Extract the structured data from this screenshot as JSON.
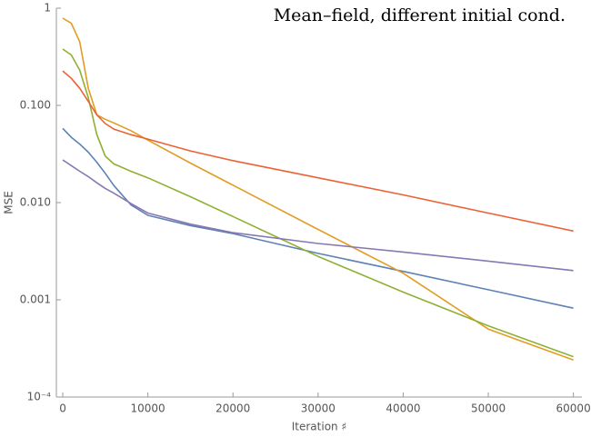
{
  "chart_data": {
    "type": "line",
    "title": "Mean–field, different initial cond.",
    "xlabel": "Iteration ♯",
    "ylabel": "MSE",
    "x": [
      0,
      1000,
      2000,
      3000,
      4000,
      5000,
      6000,
      8000,
      10000,
      15000,
      20000,
      30000,
      40000,
      50000,
      60000
    ],
    "series": [
      {
        "color": "#5e81b5",
        "values": [
          0.058,
          0.047,
          0.04,
          0.033,
          0.026,
          0.02,
          0.015,
          0.0095,
          0.0074,
          0.0058,
          0.0048,
          0.003,
          0.00196,
          0.00127,
          0.00082
        ]
      },
      {
        "color": "#e19c24",
        "values": [
          0.79,
          0.7,
          0.45,
          0.15,
          0.08,
          0.072,
          0.066,
          0.055,
          0.044,
          0.0255,
          0.0151,
          0.0053,
          0.00188,
          0.0005,
          0.00024
        ]
      },
      {
        "color": "#8fb032",
        "values": [
          0.38,
          0.33,
          0.23,
          0.12,
          0.05,
          0.03,
          0.025,
          0.021,
          0.018,
          0.0115,
          0.0072,
          0.0028,
          0.0012,
          0.00054,
          0.00026
        ]
      },
      {
        "color": "#eb6235",
        "values": [
          0.226,
          0.19,
          0.15,
          0.11,
          0.08,
          0.065,
          0.057,
          0.05,
          0.045,
          0.034,
          0.027,
          0.018,
          0.012,
          0.0078,
          0.0051
        ]
      },
      {
        "color": "#8778b3",
        "values": [
          0.0275,
          0.024,
          0.021,
          0.0185,
          0.016,
          0.014,
          0.0125,
          0.0098,
          0.0078,
          0.006,
          0.0049,
          0.0038,
          0.0031,
          0.0025,
          0.002
        ]
      }
    ],
    "xlim": [
      -750,
      61000
    ],
    "xticks": [
      0,
      10000,
      20000,
      30000,
      40000,
      50000,
      60000
    ],
    "ylim": [
      0.0001,
      1
    ],
    "yticks": [
      1,
      {
        "value": 0.1,
        "label": "0.100"
      },
      {
        "value": 0.01,
        "label": "0.010"
      },
      {
        "value": 0.001,
        "label": "0.001"
      },
      {
        "value": 0.0001,
        "label": "10⁻⁴"
      }
    ],
    "log_y": true,
    "grid": false
  }
}
